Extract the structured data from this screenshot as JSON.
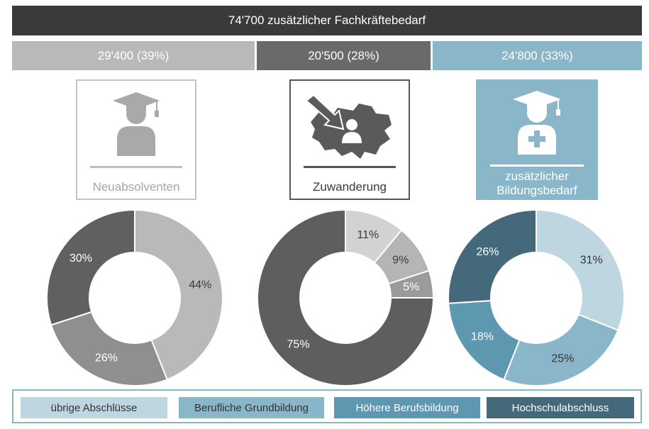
{
  "header": {
    "title": "74'700 zusätzlicher Fachkräftebedarf"
  },
  "segments": [
    {
      "label": "29'400 (39%)",
      "value": 29400,
      "percent": 39,
      "color": "#b9b9b9"
    },
    {
      "label": "20'500 (28%)",
      "value": 20500,
      "percent": 28,
      "color": "#6a6a6a"
    },
    {
      "label": "24'800 (33%)",
      "value": 24800,
      "percent": 33,
      "color": "#8ab6c9"
    }
  ],
  "cards": [
    {
      "label": "Neuabsolventen",
      "icon": "graduate-icon"
    },
    {
      "label": "Zuwanderung",
      "icon": "switzerland-immigration-icon"
    },
    {
      "label_line1": "zusätzlicher",
      "label_line2": "Bildungsbedarf",
      "icon": "graduate-plus-icon"
    }
  ],
  "chart_data": [
    {
      "type": "pie",
      "name": "Neuabsolventen",
      "slices": [
        {
          "label": "44%",
          "value": 44,
          "color": "#b9b9b9",
          "text_color": "#3a3a3a"
        },
        {
          "label": "26%",
          "value": 26,
          "color": "#8f8f8f",
          "text_color": "#ffffff"
        },
        {
          "label": "30%",
          "value": 30,
          "color": "#606060",
          "text_color": "#ffffff"
        }
      ]
    },
    {
      "type": "pie",
      "name": "Zuwanderung",
      "slices": [
        {
          "label": "11%",
          "value": 11,
          "color": "#d2d2d2",
          "text_color": "#3a3a3a"
        },
        {
          "label": "9%",
          "value": 9,
          "color": "#b5b5b5",
          "text_color": "#3a3a3a"
        },
        {
          "label": "5%",
          "value": 5,
          "color": "#9b9b9b",
          "text_color": "#ffffff"
        },
        {
          "label": "75%",
          "value": 75,
          "color": "#5e5e5e",
          "text_color": "#ffffff"
        }
      ]
    },
    {
      "type": "pie",
      "name": "zusätzlicher Bildungsbedarf",
      "slices": [
        {
          "label": "31%",
          "value": 31,
          "color": "#bed6e0",
          "text_color": "#333333"
        },
        {
          "label": "25%",
          "value": 25,
          "color": "#8ab6c9",
          "text_color": "#333333"
        },
        {
          "label": "18%",
          "value": 18,
          "color": "#5d97b0",
          "text_color": "#ffffff"
        },
        {
          "label": "26%",
          "value": 26,
          "color": "#44697b",
          "text_color": "#ffffff"
        }
      ]
    }
  ],
  "legend": [
    {
      "label": "übrige Abschlüsse",
      "color": "#bed6e0"
    },
    {
      "label": "Berufliche Grundbildung",
      "color": "#8ab6c9"
    },
    {
      "label": "Höhere Berufsbildung",
      "color": "#5d97b0"
    },
    {
      "label": "Hochschulabschluss",
      "color": "#44697b"
    }
  ]
}
